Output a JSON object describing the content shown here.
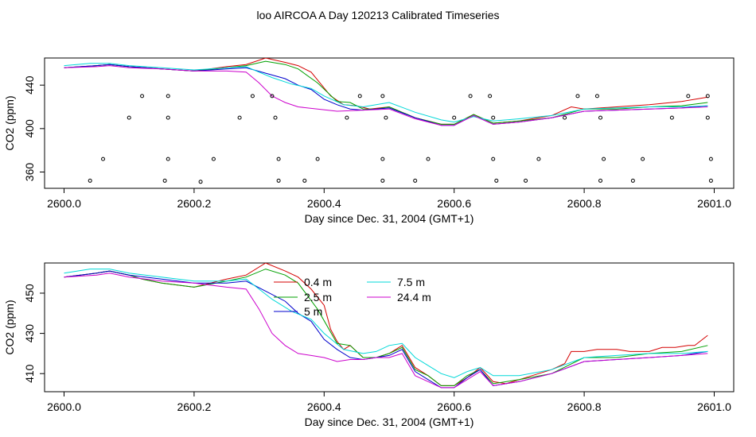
{
  "page": {
    "title": "loo AIRCOA A  Day 120213  Calibrated Timeseries"
  },
  "chart_data": [
    {
      "type": "line",
      "xlabel": "Day since Dec. 31, 2004 (GMT+1)",
      "ylabel": "CO2 (ppm)",
      "xlim": [
        2599.97,
        2601.03
      ],
      "ylim": [
        345,
        465
      ],
      "xticks": [
        2600.0,
        2600.2,
        2600.4,
        2600.6,
        2600.8,
        2601.0
      ],
      "xtick_labels": [
        "2600.0",
        "2600.2",
        "2600.4",
        "2600.6",
        "2600.8",
        "2601.0"
      ],
      "yticks": [
        360,
        400,
        440
      ],
      "ytick_labels": [
        "360",
        "400",
        "440"
      ],
      "grid": false,
      "series": [
        {
          "color": "#d40000",
          "x": [
            2600.0,
            2600.05,
            2600.07,
            2600.1,
            2600.15,
            2600.2,
            2600.25,
            2600.28,
            2600.31,
            2600.34,
            2600.36,
            2600.38,
            2600.41,
            2600.43,
            2600.45,
            2600.47,
            2600.5,
            2600.54,
            2600.58,
            2600.6,
            2600.63,
            2600.66,
            2600.7,
            2600.75,
            2600.78,
            2600.8,
            2600.85,
            2600.9,
            2600.95,
            2600.99
          ],
          "y": [
            456,
            458,
            459,
            457,
            455,
            453,
            457,
            459,
            465,
            461,
            458,
            452,
            430,
            422,
            421,
            418,
            420,
            410,
            404,
            404,
            413,
            405,
            407,
            412,
            420,
            418,
            420,
            422,
            425,
            429
          ]
        },
        {
          "color": "#00a000",
          "x": [
            2600.0,
            2600.05,
            2600.07,
            2600.1,
            2600.15,
            2600.2,
            2600.25,
            2600.28,
            2600.31,
            2600.34,
            2600.36,
            2600.39,
            2600.42,
            2600.44,
            2600.46,
            2600.48,
            2600.5,
            2600.54,
            2600.58,
            2600.6,
            2600.63,
            2600.66,
            2600.7,
            2600.75,
            2600.8,
            2600.85,
            2600.9,
            2600.95,
            2600.99
          ],
          "y": [
            456,
            458,
            459,
            457,
            455,
            453,
            456,
            458,
            462,
            459,
            455,
            442,
            425,
            424,
            418,
            418,
            420,
            410,
            404,
            404,
            413,
            405,
            407,
            410,
            418,
            418,
            420,
            421,
            424
          ]
        },
        {
          "color": "#0000cc",
          "x": [
            2600.0,
            2600.05,
            2600.07,
            2600.1,
            2600.15,
            2600.2,
            2600.25,
            2600.28,
            2600.31,
            2600.34,
            2600.36,
            2600.38,
            2600.4,
            2600.42,
            2600.44,
            2600.46,
            2600.48,
            2600.5,
            2600.54,
            2600.58,
            2600.6,
            2600.63,
            2600.66,
            2600.7,
            2600.75,
            2600.8,
            2600.85,
            2600.9,
            2600.95,
            2600.99
          ],
          "y": [
            456,
            458,
            459,
            457,
            455,
            453,
            455,
            456,
            451,
            446,
            440,
            436,
            427,
            422,
            418,
            417,
            418,
            419,
            410,
            403,
            403,
            412,
            404,
            406,
            410,
            416,
            417,
            418,
            419,
            421
          ]
        },
        {
          "color": "#00d8d8",
          "x": [
            2600.0,
            2600.04,
            2600.07,
            2600.1,
            2600.15,
            2600.2,
            2600.25,
            2600.28,
            2600.3,
            2600.32,
            2600.35,
            2600.38,
            2600.4,
            2600.43,
            2600.46,
            2600.5,
            2600.54,
            2600.58,
            2600.6,
            2600.63,
            2600.66,
            2600.7,
            2600.75,
            2600.8,
            2600.85,
            2600.9,
            2600.95,
            2600.99
          ],
          "y": [
            458,
            460,
            460,
            458,
            456,
            454,
            456,
            457,
            452,
            447,
            441,
            437,
            430,
            422,
            420,
            424,
            415,
            408,
            406,
            411,
            407,
            409,
            412,
            418,
            419,
            420,
            420,
            421
          ]
        },
        {
          "color": "#cc00cc",
          "x": [
            2600.0,
            2600.05,
            2600.07,
            2600.1,
            2600.15,
            2600.2,
            2600.25,
            2600.28,
            2600.3,
            2600.32,
            2600.34,
            2600.36,
            2600.39,
            2600.42,
            2600.46,
            2600.5,
            2600.54,
            2600.58,
            2600.6,
            2600.63,
            2600.66,
            2600.7,
            2600.75,
            2600.8,
            2600.85,
            2600.9,
            2600.95,
            2600.99
          ],
          "y": [
            456,
            457,
            458,
            456,
            455,
            453,
            453,
            452,
            442,
            430,
            424,
            420,
            418,
            416,
            417,
            418,
            409,
            403,
            403,
            412,
            404,
            406,
            410,
            416,
            417,
            418,
            419,
            420
          ]
        },
        {
          "kind": "scatter",
          "color": "#000000",
          "x": [
            2600.04,
            2600.06,
            2600.1,
            2600.12,
            2600.155,
            2600.16,
            2600.16,
            2600.16,
            2600.21,
            2600.23,
            2600.27,
            2600.29,
            2600.32,
            2600.325,
            2600.33,
            2600.33,
            2600.37,
            2600.39,
            2600.435,
            2600.455,
            2600.49,
            2600.495,
            2600.49,
            2600.49,
            2600.54,
            2600.56,
            2600.6,
            2600.625,
            2600.655,
            2600.66,
            2600.66,
            2600.665,
            2600.71,
            2600.73,
            2600.77,
            2600.79,
            2600.82,
            2600.825,
            2600.83,
            2600.825,
            2600.875,
            2600.89,
            2600.935,
            2600.96,
            2600.99,
            2600.99,
            2600.995,
            2600.995
          ],
          "y": [
            352,
            372,
            410,
            430,
            352,
            372,
            410,
            430,
            351,
            372,
            410,
            430,
            430,
            410,
            372,
            352,
            352,
            372,
            410,
            430,
            430,
            410,
            372,
            352,
            352,
            372,
            410,
            430,
            430,
            410,
            372,
            352,
            352,
            372,
            410,
            430,
            430,
            410,
            372,
            352,
            352,
            372,
            410,
            430,
            430,
            410,
            372,
            352
          ]
        }
      ]
    },
    {
      "type": "line",
      "xlabel": "Day since Dec. 31, 2004 (GMT+1)",
      "ylabel": "CO2 (ppm)",
      "xlim": [
        2599.97,
        2601.03
      ],
      "ylim": [
        401,
        465
      ],
      "xticks": [
        2600.0,
        2600.2,
        2600.4,
        2600.6,
        2600.8,
        2601.0
      ],
      "xtick_labels": [
        "2600.0",
        "2600.2",
        "2600.4",
        "2600.6",
        "2600.8",
        "2601.0"
      ],
      "yticks": [
        410,
        430,
        450
      ],
      "ytick_labels": [
        "410",
        "430",
        "450"
      ],
      "grid": false,
      "legend": {
        "position": "top-center",
        "columns": 2
      },
      "series": [
        {
          "name": "0.4 m",
          "color": "#d40000",
          "x": [
            2600.0,
            2600.05,
            2600.07,
            2600.1,
            2600.12,
            2600.15,
            2600.2,
            2600.25,
            2600.28,
            2600.31,
            2600.34,
            2600.36,
            2600.38,
            2600.4,
            2600.41,
            2600.42,
            2600.43,
            2600.44,
            2600.46,
            2600.48,
            2600.5,
            2600.52,
            2600.54,
            2600.56,
            2600.58,
            2600.6,
            2600.62,
            2600.64,
            2600.66,
            2600.68,
            2600.7,
            2600.73,
            2600.75,
            2600.77,
            2600.78,
            2600.8,
            2600.82,
            2600.85,
            2600.87,
            2600.9,
            2600.92,
            2600.94,
            2600.96,
            2600.97,
            2600.99
          ],
          "y": [
            458,
            460,
            461,
            459,
            457,
            455,
            453,
            457,
            459,
            465,
            461,
            458,
            452,
            444,
            432,
            426,
            422,
            424,
            418,
            418,
            420,
            424,
            413,
            409,
            404,
            404,
            408,
            413,
            406,
            405,
            407,
            410,
            412,
            415,
            421,
            421,
            422,
            422,
            421,
            421,
            423,
            423,
            424,
            424,
            429
          ]
        },
        {
          "name": "2.5 m",
          "color": "#00a000",
          "x": [
            2600.0,
            2600.05,
            2600.07,
            2600.1,
            2600.12,
            2600.15,
            2600.2,
            2600.25,
            2600.28,
            2600.31,
            2600.34,
            2600.36,
            2600.39,
            2600.42,
            2600.44,
            2600.46,
            2600.48,
            2600.5,
            2600.52,
            2600.54,
            2600.56,
            2600.58,
            2600.6,
            2600.62,
            2600.64,
            2600.66,
            2600.7,
            2600.75,
            2600.8,
            2600.85,
            2600.9,
            2600.95,
            2600.99
          ],
          "y": [
            458,
            460,
            461,
            459,
            457,
            455,
            453,
            456,
            458,
            462,
            459,
            455,
            442,
            425,
            424,
            418,
            418,
            420,
            423,
            412,
            409,
            404,
            404,
            409,
            412,
            405,
            407,
            410,
            418,
            418,
            420,
            421,
            424
          ]
        },
        {
          "name": "5 m",
          "color": "#0000cc",
          "x": [
            2600.0,
            2600.05,
            2600.07,
            2600.1,
            2600.15,
            2600.2,
            2600.25,
            2600.28,
            2600.31,
            2600.34,
            2600.36,
            2600.38,
            2600.4,
            2600.42,
            2600.44,
            2600.46,
            2600.48,
            2600.5,
            2600.52,
            2600.54,
            2600.56,
            2600.58,
            2600.6,
            2600.62,
            2600.64,
            2600.66,
            2600.7,
            2600.75,
            2600.8,
            2600.85,
            2600.9,
            2600.95,
            2600.99
          ],
          "y": [
            458,
            460,
            461,
            459,
            457,
            455,
            455,
            456,
            451,
            446,
            440,
            436,
            427,
            422,
            418,
            417,
            418,
            419,
            422,
            411,
            407,
            403,
            403,
            408,
            412,
            404,
            406,
            410,
            416,
            417,
            418,
            419,
            421
          ]
        },
        {
          "name": "7.5 m",
          "color": "#00d8d8",
          "x": [
            2600.0,
            2600.04,
            2600.07,
            2600.1,
            2600.15,
            2600.2,
            2600.25,
            2600.28,
            2600.3,
            2600.32,
            2600.35,
            2600.38,
            2600.4,
            2600.43,
            2600.46,
            2600.48,
            2600.5,
            2600.52,
            2600.54,
            2600.56,
            2600.58,
            2600.6,
            2600.62,
            2600.64,
            2600.66,
            2600.7,
            2600.75,
            2600.8,
            2600.85,
            2600.9,
            2600.95,
            2600.99
          ],
          "y": [
            460,
            462,
            462,
            460,
            458,
            456,
            456,
            457,
            452,
            447,
            441,
            437,
            430,
            422,
            420,
            421,
            424,
            425,
            418,
            414,
            410,
            408,
            411,
            413,
            409,
            409,
            412,
            418,
            419,
            420,
            420,
            421
          ]
        },
        {
          "name": "24.4 m",
          "color": "#cc00cc",
          "x": [
            2600.0,
            2600.05,
            2600.07,
            2600.1,
            2600.15,
            2600.2,
            2600.25,
            2600.28,
            2600.3,
            2600.32,
            2600.34,
            2600.36,
            2600.38,
            2600.4,
            2600.42,
            2600.44,
            2600.46,
            2600.48,
            2600.5,
            2600.52,
            2600.54,
            2600.56,
            2600.58,
            2600.6,
            2600.62,
            2600.64,
            2600.66,
            2600.7,
            2600.75,
            2600.8,
            2600.85,
            2600.9,
            2600.95,
            2600.99
          ],
          "y": [
            458,
            459,
            460,
            458,
            456,
            455,
            453,
            452,
            442,
            430,
            424,
            420,
            419,
            418,
            416,
            417,
            417,
            418,
            418,
            420,
            409,
            406,
            403,
            403,
            407,
            411,
            404,
            406,
            410,
            416,
            417,
            418,
            419,
            420
          ]
        }
      ]
    }
  ]
}
